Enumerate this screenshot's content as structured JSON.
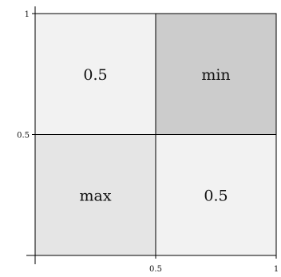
{
  "chart_data": {
    "type": "heatmap",
    "xlim": [
      0,
      1
    ],
    "ylim": [
      0,
      1
    ],
    "x_ticks": [
      {
        "value": 0.5,
        "label": "0.5"
      },
      {
        "value": 1,
        "label": "1"
      }
    ],
    "y_ticks": [
      {
        "value": 0.5,
        "label": "0.5"
      },
      {
        "value": 1,
        "label": "1"
      }
    ],
    "cells": [
      {
        "x": [
          0,
          0.5
        ],
        "y": [
          0.5,
          1
        ],
        "label": "0.5",
        "color": "#f2f2f2"
      },
      {
        "x": [
          0.5,
          1
        ],
        "y": [
          0.5,
          1
        ],
        "label": "min",
        "color": "#cccccc"
      },
      {
        "x": [
          0,
          0.5
        ],
        "y": [
          0,
          0.5
        ],
        "label": "max",
        "color": "#e5e5e5"
      },
      {
        "x": [
          0.5,
          1
        ],
        "y": [
          0,
          0.5
        ],
        "label": "0.5",
        "color": "#f2f2f2"
      }
    ],
    "grid": false,
    "legend": "none"
  }
}
